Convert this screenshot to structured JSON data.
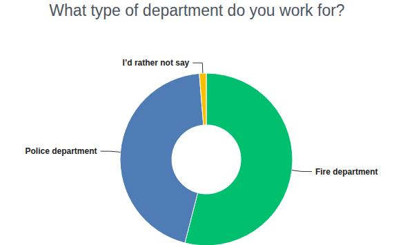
{
  "chart_data": {
    "type": "pie",
    "title": "What type of department do you work for?",
    "categories": [
      "Fire department",
      "Police department",
      "I’d rather not say"
    ],
    "values": [
      54,
      44.7,
      1.3
    ],
    "colors": [
      "#00bf6f",
      "#507cb6",
      "#f9be00"
    ]
  }
}
